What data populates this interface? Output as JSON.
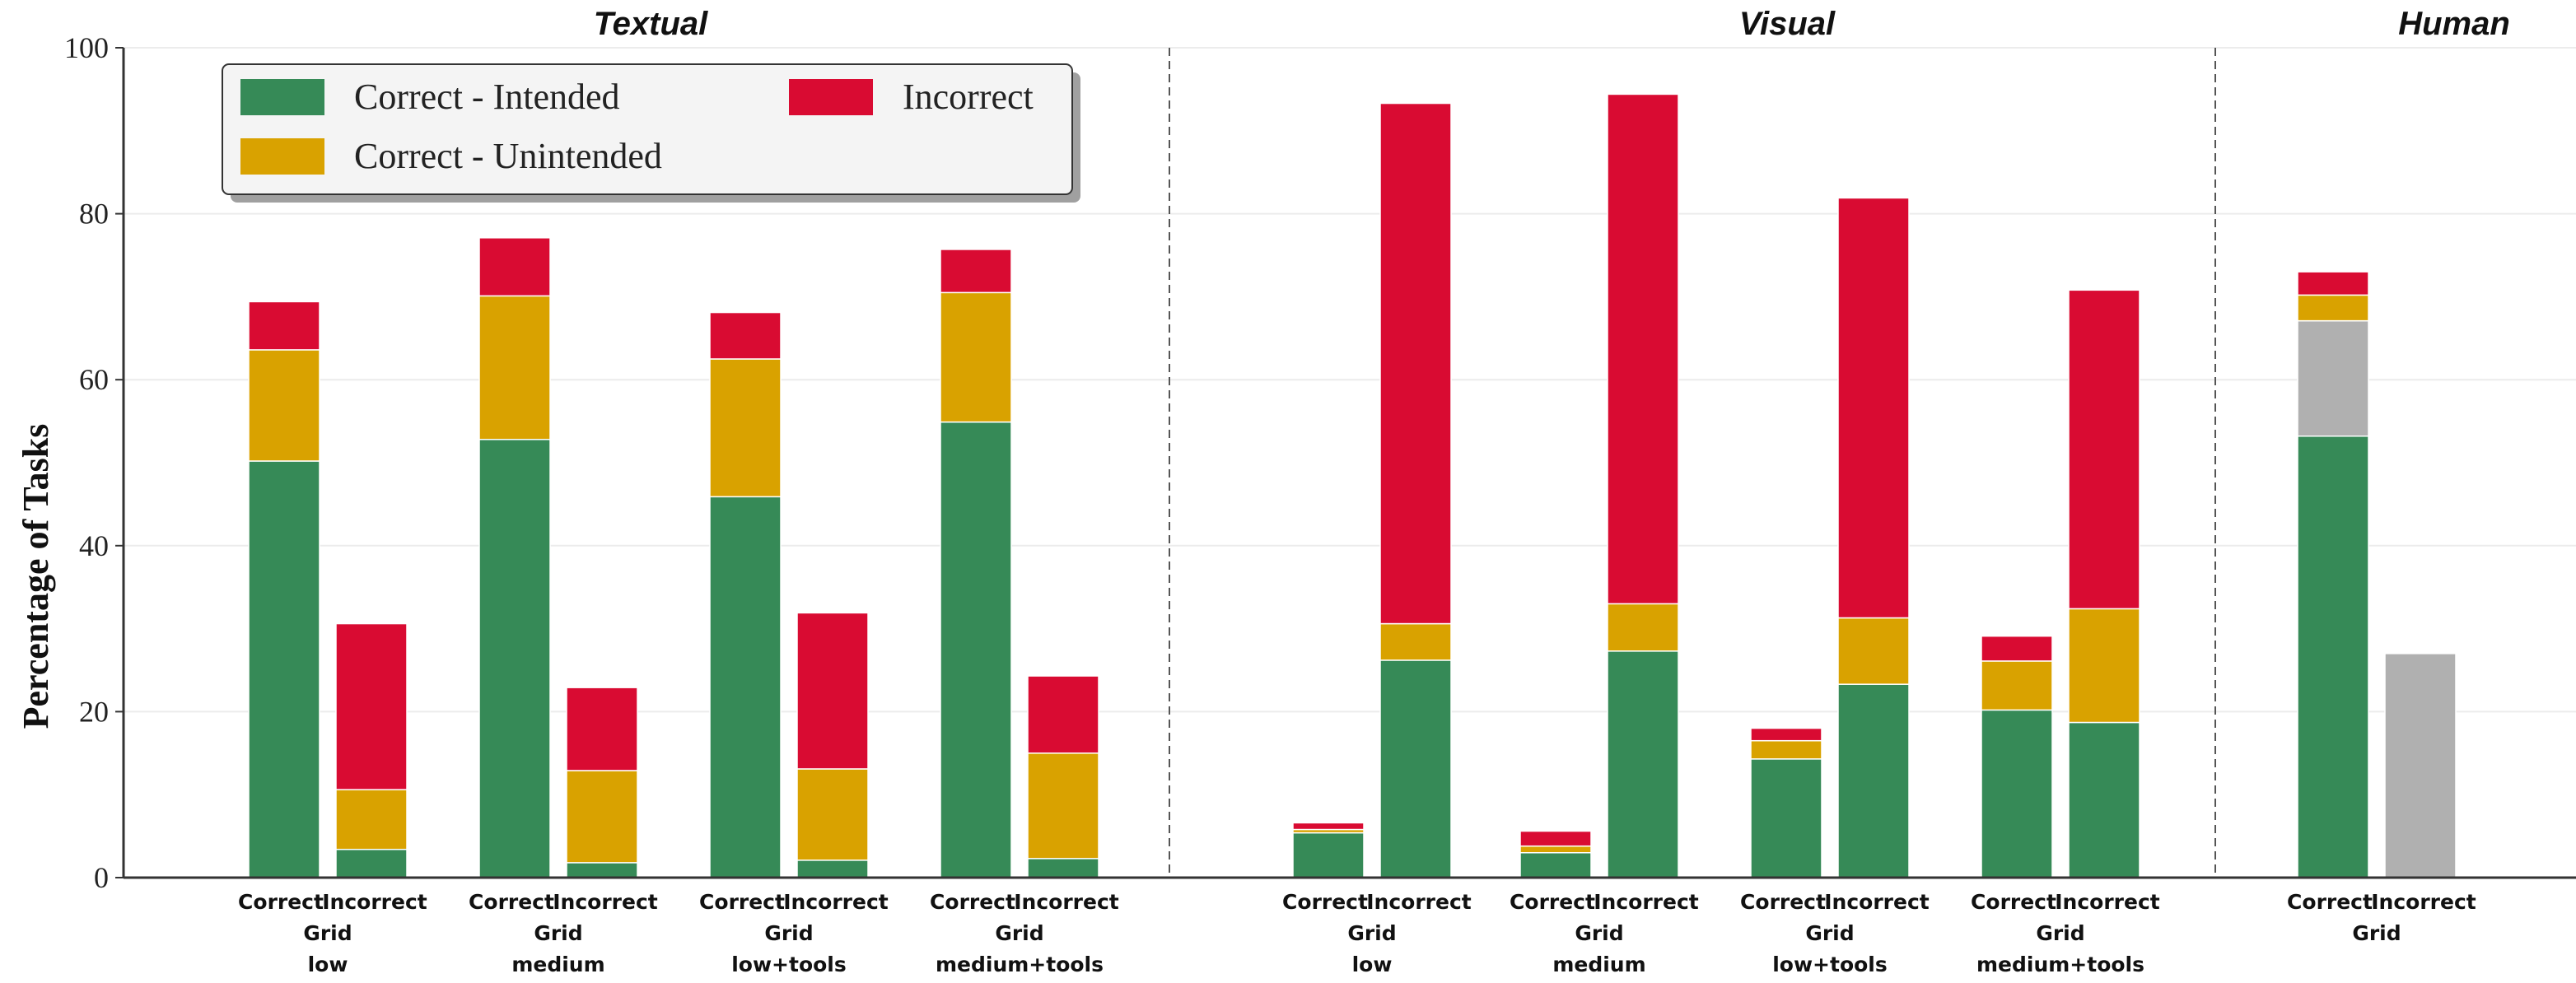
{
  "chart_data": {
    "type": "bar",
    "stacked": true,
    "ylabel": "Percentage of Tasks",
    "ylim": [
      0,
      100
    ],
    "yticks": [
      0,
      20,
      40,
      60,
      80,
      100
    ],
    "grid": "horizontal",
    "legend_placement": "top-left",
    "colors": {
      "intended": "#368a57",
      "unintended": "#d9a200",
      "incorrect": "#d90b32",
      "gray": "#b0b0b0"
    },
    "legend": [
      {
        "key": "intended",
        "label": "Correct - Intended"
      },
      {
        "key": "incorrect",
        "label": "Incorrect"
      },
      {
        "key": "unintended",
        "label": "Correct - Unintended"
      }
    ],
    "sections": [
      {
        "title": "Textual",
        "groups": [
          {
            "labels": [
              "Grid",
              "low"
            ],
            "bars": [
              {
                "label": "Correct",
                "intended": 50.2,
                "unintended": 13.4,
                "incorrect": 5.8
              },
              {
                "label": "Incorrect",
                "intended": 3.4,
                "unintended": 7.2,
                "incorrect": 20.0
              }
            ]
          },
          {
            "labels": [
              "Grid",
              "medium"
            ],
            "bars": [
              {
                "label": "Correct",
                "intended": 52.8,
                "unintended": 17.3,
                "incorrect": 7.0
              },
              {
                "label": "Incorrect",
                "intended": 1.8,
                "unintended": 11.1,
                "incorrect": 10.0
              }
            ]
          },
          {
            "labels": [
              "Grid",
              "low+tools"
            ],
            "bars": [
              {
                "label": "Correct",
                "intended": 45.9,
                "unintended": 16.6,
                "incorrect": 5.6
              },
              {
                "label": "Incorrect",
                "intended": 2.1,
                "unintended": 11.0,
                "incorrect": 18.8
              }
            ]
          },
          {
            "labels": [
              "Grid",
              "medium+tools"
            ],
            "bars": [
              {
                "label": "Correct",
                "intended": 54.9,
                "unintended": 15.6,
                "incorrect": 5.2
              },
              {
                "label": "Incorrect",
                "intended": 2.3,
                "unintended": 12.7,
                "incorrect": 9.3
              }
            ]
          }
        ]
      },
      {
        "title": "Visual",
        "groups": [
          {
            "labels": [
              "Grid",
              "low"
            ],
            "bars": [
              {
                "label": "Correct",
                "intended": 5.4,
                "unintended": 0.4,
                "incorrect": 0.8
              },
              {
                "label": "Incorrect",
                "intended": 26.2,
                "unintended": 4.4,
                "incorrect": 62.7
              }
            ]
          },
          {
            "labels": [
              "Grid",
              "medium"
            ],
            "bars": [
              {
                "label": "Correct",
                "intended": 3.0,
                "unintended": 0.8,
                "incorrect": 1.8
              },
              {
                "label": "Incorrect",
                "intended": 27.3,
                "unintended": 5.7,
                "incorrect": 61.4
              }
            ]
          },
          {
            "labels": [
              "Grid",
              "low+tools"
            ],
            "bars": [
              {
                "label": "Correct",
                "intended": 14.3,
                "unintended": 2.2,
                "incorrect": 1.5
              },
              {
                "label": "Incorrect",
                "intended": 23.3,
                "unintended": 8.0,
                "incorrect": 50.6
              }
            ]
          },
          {
            "labels": [
              "Grid",
              "medium+tools"
            ],
            "bars": [
              {
                "label": "Correct",
                "intended": 20.2,
                "unintended": 5.9,
                "incorrect": 3.0
              },
              {
                "label": "Incorrect",
                "intended": 18.7,
                "unintended": 13.7,
                "incorrect": 38.4
              }
            ]
          }
        ]
      },
      {
        "title": "Human",
        "groups": [
          {
            "labels": [
              "Grid"
            ],
            "bars": [
              {
                "label": "Correct",
                "intended": 53.2,
                "gray": 13.9,
                "unintended": 3.1,
                "incorrect": 2.8
              },
              {
                "label": "Incorrect",
                "gray": 27.0
              }
            ]
          }
        ]
      }
    ]
  }
}
